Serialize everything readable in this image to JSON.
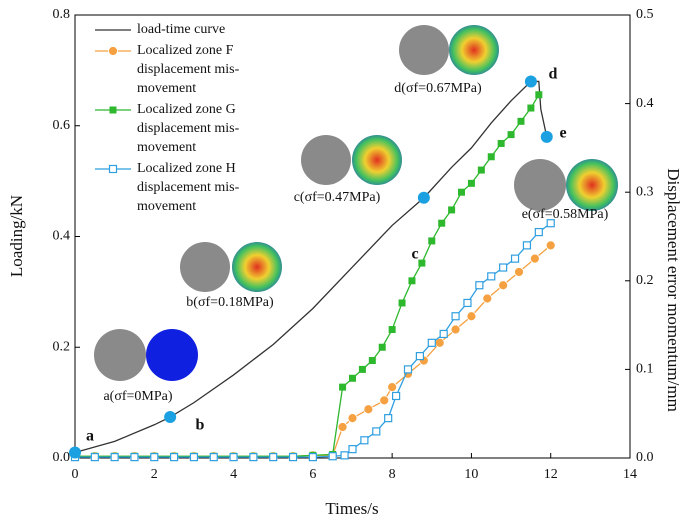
{
  "chart_data": {
    "type": "line",
    "xlabel": "Times/s",
    "ylabel": "Loading/kN",
    "y2label": "Displacement error momentum/mm",
    "xlim": [
      0,
      14
    ],
    "xticks": [
      0,
      2,
      4,
      6,
      8,
      10,
      12,
      14
    ],
    "ylim": [
      0,
      0.8
    ],
    "yticks": [
      {
        "value": 0,
        "label": "0.0"
      },
      0.2,
      0.4,
      0.6,
      0.8
    ],
    "y2lim": [
      0,
      0.5
    ],
    "y2ticks": [
      {
        "value": 0,
        "label": "0.0"
      },
      0.1,
      0.2,
      0.3,
      0.4,
      0.5
    ],
    "series": [
      {
        "name": "load-time curve",
        "color": "#333333",
        "marker": "none",
        "x": [
          0,
          1,
          2,
          2.4,
          3,
          4,
          5,
          6,
          7,
          8,
          8.8,
          9.5,
          10,
          10.5,
          11,
          11.5,
          11.7,
          11.75,
          11.9
        ],
        "values": [
          0.01,
          0.03,
          0.06,
          0.074,
          0.1,
          0.15,
          0.205,
          0.27,
          0.345,
          0.42,
          0.47,
          0.525,
          0.56,
          0.605,
          0.645,
          0.68,
          0.68,
          0.63,
          0.58
        ]
      },
      {
        "name": "Localized zone F displacement mis-movement",
        "color": "#f5a142",
        "marker": "circle",
        "axis": "y2",
        "x": [
          0,
          0.5,
          1,
          1.5,
          2,
          2.5,
          3,
          3.5,
          4,
          4.5,
          5,
          5.5,
          6,
          6.5,
          6.75,
          7.0,
          7.4,
          7.8,
          8.0,
          8.4,
          8.8,
          9.2,
          9.6,
          10.0,
          10.4,
          10.8,
          11.2,
          11.6,
          12.0
        ],
        "values": [
          0.002,
          0.002,
          0.002,
          0.002,
          0.002,
          0.002,
          0.002,
          0.002,
          0.002,
          0.002,
          0.002,
          0.002,
          0.003,
          0.003,
          0.035,
          0.045,
          0.055,
          0.065,
          0.08,
          0.095,
          0.11,
          0.13,
          0.145,
          0.16,
          0.18,
          0.195,
          0.21,
          0.225,
          0.24
        ]
      },
      {
        "name": "Localized zone G displacement mis-movement",
        "color": "#2db82d",
        "marker": "square",
        "axis": "y2",
        "x": [
          0,
          0.5,
          1,
          1.5,
          2,
          2.5,
          3,
          3.5,
          4,
          4.5,
          5,
          5.5,
          6,
          6.5,
          6.75,
          7.0,
          7.25,
          7.5,
          7.75,
          8.0,
          8.25,
          8.5,
          8.75,
          9.0,
          9.25,
          9.5,
          9.75,
          10.0,
          10.25,
          10.5,
          10.75,
          11.0,
          11.25,
          11.5,
          11.7
        ],
        "values": [
          0.002,
          0.002,
          0.002,
          0.002,
          0.002,
          0.002,
          0.002,
          0.002,
          0.002,
          0.002,
          0.002,
          0.002,
          0.003,
          0.004,
          0.08,
          0.09,
          0.1,
          0.11,
          0.125,
          0.145,
          0.175,
          0.2,
          0.22,
          0.245,
          0.265,
          0.28,
          0.3,
          0.31,
          0.325,
          0.34,
          0.355,
          0.365,
          0.38,
          0.395,
          0.41
        ]
      },
      {
        "name": "Localized zone H displacement mis-movement",
        "color": "#2f9fe0",
        "marker": "open-square",
        "axis": "y2",
        "x": [
          0,
          0.5,
          1,
          1.5,
          2,
          2.5,
          3,
          3.5,
          4,
          4.5,
          5,
          5.5,
          6,
          6.5,
          6.8,
          7.0,
          7.3,
          7.6,
          7.9,
          8.1,
          8.4,
          8.7,
          9.0,
          9.3,
          9.6,
          9.9,
          10.2,
          10.5,
          10.8,
          11.1,
          11.4,
          11.7,
          12.0
        ],
        "values": [
          0.001,
          0.001,
          0.001,
          0.001,
          0.001,
          0.001,
          0.001,
          0.001,
          0.001,
          0.001,
          0.001,
          0.001,
          0.001,
          0.002,
          0.003,
          0.01,
          0.02,
          0.03,
          0.045,
          0.07,
          0.1,
          0.115,
          0.13,
          0.14,
          0.16,
          0.175,
          0.195,
          0.205,
          0.215,
          0.225,
          0.24,
          0.255,
          0.265
        ]
      }
    ],
    "points": {
      "color": "#1ba1e2",
      "x": [
        0,
        2.4,
        8.8,
        11.5,
        11.9
      ],
      "values": [
        0.01,
        0.074,
        0.47,
        0.68,
        0.58
      ],
      "labels": [
        "a",
        "b",
        "c",
        "d",
        "e"
      ],
      "captions": [
        "a(σf=0MPa)",
        "b(σf=0.18MPa)",
        "c(σf=0.47MPa)",
        "d(σf=0.67MPa)",
        "e(σf=0.58MPa)"
      ]
    }
  }
}
